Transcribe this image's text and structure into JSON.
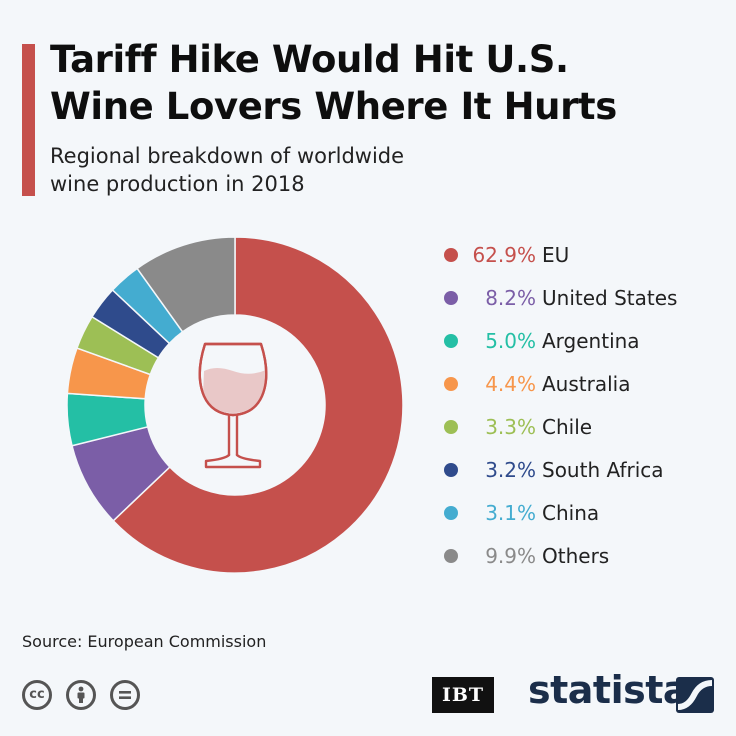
{
  "header": {
    "title_line1": "Tariff Hike Would Hit U.S.",
    "title_line2": "Wine Lovers Where It Hurts",
    "subtitle_line1": "Regional breakdown of worldwide",
    "subtitle_line2": "wine production in 2018"
  },
  "colors": {
    "accent": "#c5504c",
    "background": "#f4f7fa",
    "brand": "#1b2e4a"
  },
  "chart_data": {
    "type": "pie",
    "title": "Tariff Hike Would Hit U.S. Wine Lovers Where It Hurts",
    "subtitle": "Regional breakdown of worldwide wine production in 2018",
    "donut": true,
    "center_icon": "wine-glass-icon",
    "legend_position": "right",
    "unit": "%",
    "slices": [
      {
        "name": "EU",
        "value": 62.9,
        "label": "62.9%",
        "color": "#c5504c"
      },
      {
        "name": "United States",
        "value": 8.2,
        "label": "8.2%",
        "color": "#7b5ea7"
      },
      {
        "name": "Argentina",
        "value": 5.0,
        "label": "5.0%",
        "color": "#24bfa5"
      },
      {
        "name": "Australia",
        "value": 4.4,
        "label": "4.4%",
        "color": "#f7964b"
      },
      {
        "name": "Chile",
        "value": 3.3,
        "label": "3.3%",
        "color": "#9dbf55"
      },
      {
        "name": "South Africa",
        "value": 3.2,
        "label": "3.2%",
        "color": "#2f4b8c"
      },
      {
        "name": "China",
        "value": 3.1,
        "label": "3.1%",
        "color": "#44acd0"
      },
      {
        "name": "Others",
        "value": 9.9,
        "label": "9.9%",
        "color": "#8a8a8a"
      }
    ]
  },
  "footer": {
    "source": "Source: European Commission",
    "license_icons": [
      "cc-icon",
      "attribution-icon",
      "no-derivatives-icon"
    ],
    "license_cc_text": "cc",
    "partner_logo": "IBT",
    "brand": "statista"
  }
}
